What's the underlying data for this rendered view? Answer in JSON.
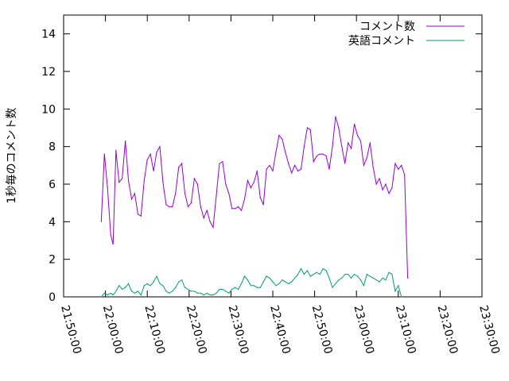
{
  "chart_data": {
    "type": "line",
    "title": "",
    "xlabel": "",
    "ylabel": "1秒毎のコメント数",
    "x_range": [
      "21:50:00",
      "23:30:00"
    ],
    "x_ticks": [
      "21:50:00",
      "22:00:00",
      "22:10:00",
      "22:20:00",
      "22:30:00",
      "22:40:00",
      "22:50:00",
      "23:00:00",
      "23:10:00",
      "23:20:00",
      "23:30:00"
    ],
    "ylim": [
      0,
      15
    ],
    "y_ticks": [
      "0",
      "2",
      "4",
      "6",
      "8",
      "10",
      "12",
      "14"
    ],
    "grid": false,
    "legend_position": "top-right",
    "series": [
      {
        "name": "コメント数",
        "color": "#9400d3",
        "points": [
          [
            "21:59:00",
            4.0
          ],
          [
            "21:59:45",
            7.6
          ],
          [
            "22:00:30",
            5.8
          ],
          [
            "22:01:15",
            3.3
          ],
          [
            "22:01:50",
            2.8
          ],
          [
            "22:02:30",
            7.8
          ],
          [
            "22:03:15",
            6.1
          ],
          [
            "22:04:00",
            6.3
          ],
          [
            "22:04:45",
            8.3
          ],
          [
            "22:05:30",
            6.2
          ],
          [
            "22:06:15",
            5.2
          ],
          [
            "22:07:00",
            5.5
          ],
          [
            "22:07:45",
            4.4
          ],
          [
            "22:08:30",
            4.3
          ],
          [
            "22:09:15",
            6.2
          ],
          [
            "22:10:00",
            7.3
          ],
          [
            "22:10:45",
            7.6
          ],
          [
            "22:11:30",
            6.7
          ],
          [
            "22:12:15",
            7.7
          ],
          [
            "22:13:00",
            8.0
          ],
          [
            "22:13:45",
            6.1
          ],
          [
            "22:14:30",
            4.9
          ],
          [
            "22:15:15",
            4.8
          ],
          [
            "22:16:00",
            4.8
          ],
          [
            "22:16:45",
            5.5
          ],
          [
            "22:17:30",
            6.9
          ],
          [
            "22:18:15",
            7.1
          ],
          [
            "22:19:00",
            5.5
          ],
          [
            "22:19:45",
            4.8
          ],
          [
            "22:20:30",
            5.0
          ],
          [
            "22:21:15",
            6.3
          ],
          [
            "22:22:00",
            6.0
          ],
          [
            "22:22:45",
            4.8
          ],
          [
            "22:23:30",
            4.2
          ],
          [
            "22:24:15",
            4.6
          ],
          [
            "22:25:00",
            4.0
          ],
          [
            "22:25:45",
            3.7
          ],
          [
            "22:26:30",
            5.4
          ],
          [
            "22:27:15",
            7.1
          ],
          [
            "22:28:00",
            7.2
          ],
          [
            "22:28:45",
            6.0
          ],
          [
            "22:29:30",
            5.5
          ],
          [
            "22:30:15",
            4.7
          ],
          [
            "22:31:00",
            4.7
          ],
          [
            "22:31:45",
            4.8
          ],
          [
            "22:32:30",
            4.6
          ],
          [
            "22:33:15",
            5.2
          ],
          [
            "22:34:00",
            6.2
          ],
          [
            "22:34:45",
            5.8
          ],
          [
            "22:35:30",
            6.1
          ],
          [
            "22:36:15",
            6.7
          ],
          [
            "22:37:00",
            5.3
          ],
          [
            "22:37:45",
            4.9
          ],
          [
            "22:38:30",
            6.8
          ],
          [
            "22:39:15",
            7.0
          ],
          [
            "22:40:00",
            6.7
          ],
          [
            "22:40:45",
            7.7
          ],
          [
            "22:41:30",
            8.6
          ],
          [
            "22:42:15",
            8.4
          ],
          [
            "22:43:00",
            7.7
          ],
          [
            "22:43:45",
            7.1
          ],
          [
            "22:44:30",
            6.6
          ],
          [
            "22:45:15",
            7.0
          ],
          [
            "22:46:00",
            6.7
          ],
          [
            "22:46:45",
            6.8
          ],
          [
            "22:47:30",
            8.0
          ],
          [
            "22:48:15",
            9.0
          ],
          [
            "22:49:00",
            8.9
          ],
          [
            "22:49:45",
            7.2
          ],
          [
            "22:50:30",
            7.5
          ],
          [
            "22:51:15",
            7.6
          ],
          [
            "22:52:00",
            7.6
          ],
          [
            "22:52:45",
            7.5
          ],
          [
            "22:53:30",
            6.8
          ],
          [
            "22:54:15",
            8.0
          ],
          [
            "22:55:00",
            9.6
          ],
          [
            "22:55:45",
            9.0
          ],
          [
            "22:56:30",
            8.0
          ],
          [
            "22:57:15",
            7.1
          ],
          [
            "22:58:00",
            8.2
          ],
          [
            "22:58:45",
            7.9
          ],
          [
            "22:59:30",
            9.2
          ],
          [
            "23:00:15",
            8.6
          ],
          [
            "23:01:00",
            8.3
          ],
          [
            "23:01:45",
            7.0
          ],
          [
            "23:02:30",
            7.4
          ],
          [
            "23:03:15",
            8.2
          ],
          [
            "23:04:00",
            6.9
          ],
          [
            "23:04:45",
            6.0
          ],
          [
            "23:05:30",
            6.3
          ],
          [
            "23:06:15",
            5.7
          ],
          [
            "23:07:00",
            6.0
          ],
          [
            "23:07:45",
            5.5
          ],
          [
            "23:08:30",
            5.8
          ],
          [
            "23:09:15",
            7.1
          ],
          [
            "23:10:00",
            6.8
          ],
          [
            "23:10:45",
            7.0
          ],
          [
            "23:11:30",
            6.5
          ],
          [
            "23:12:15",
            1.0
          ]
        ]
      },
      {
        "name": "英語コメント",
        "color": "#009e73",
        "points": [
          [
            "21:59:00",
            0.0
          ],
          [
            "21:59:45",
            0.2
          ],
          [
            "22:00:30",
            0.1
          ],
          [
            "22:01:15",
            0.2
          ],
          [
            "22:01:50",
            0.1
          ],
          [
            "22:02:30",
            0.3
          ],
          [
            "22:03:15",
            0.6
          ],
          [
            "22:04:00",
            0.4
          ],
          [
            "22:04:45",
            0.5
          ],
          [
            "22:05:30",
            0.7
          ],
          [
            "22:06:15",
            0.3
          ],
          [
            "22:07:00",
            0.2
          ],
          [
            "22:07:45",
            0.3
          ],
          [
            "22:08:30",
            0.1
          ],
          [
            "22:09:15",
            0.6
          ],
          [
            "22:10:00",
            0.7
          ],
          [
            "22:10:45",
            0.6
          ],
          [
            "22:11:30",
            0.8
          ],
          [
            "22:12:15",
            1.1
          ],
          [
            "22:13:00",
            0.7
          ],
          [
            "22:13:45",
            0.6
          ],
          [
            "22:14:30",
            0.3
          ],
          [
            "22:15:15",
            0.2
          ],
          [
            "22:16:00",
            0.3
          ],
          [
            "22:16:45",
            0.5
          ],
          [
            "22:17:30",
            0.8
          ],
          [
            "22:18:15",
            0.9
          ],
          [
            "22:19:00",
            0.5
          ],
          [
            "22:19:45",
            0.4
          ],
          [
            "22:20:30",
            0.3
          ],
          [
            "22:21:15",
            0.3
          ],
          [
            "22:22:00",
            0.2
          ],
          [
            "22:22:45",
            0.2
          ],
          [
            "22:23:30",
            0.1
          ],
          [
            "22:24:15",
            0.2
          ],
          [
            "22:25:00",
            0.1
          ],
          [
            "22:25:45",
            0.1
          ],
          [
            "22:26:30",
            0.2
          ],
          [
            "22:27:15",
            0.4
          ],
          [
            "22:28:00",
            0.4
          ],
          [
            "22:28:45",
            0.3
          ],
          [
            "22:29:30",
            0.2
          ],
          [
            "22:30:15",
            0.4
          ],
          [
            "22:31:00",
            0.5
          ],
          [
            "22:31:45",
            0.4
          ],
          [
            "22:32:30",
            0.7
          ],
          [
            "22:33:15",
            1.1
          ],
          [
            "22:34:00",
            0.9
          ],
          [
            "22:34:45",
            0.6
          ],
          [
            "22:35:30",
            0.6
          ],
          [
            "22:36:15",
            0.5
          ],
          [
            "22:37:00",
            0.5
          ],
          [
            "22:37:45",
            0.8
          ],
          [
            "22:38:30",
            1.1
          ],
          [
            "22:39:15",
            1.0
          ],
          [
            "22:40:00",
            0.8
          ],
          [
            "22:40:45",
            0.6
          ],
          [
            "22:41:30",
            0.7
          ],
          [
            "22:42:15",
            0.9
          ],
          [
            "22:43:00",
            0.8
          ],
          [
            "22:43:45",
            0.7
          ],
          [
            "22:44:30",
            0.8
          ],
          [
            "22:45:15",
            1.0
          ],
          [
            "22:46:00",
            1.2
          ],
          [
            "22:46:45",
            1.5
          ],
          [
            "22:47:30",
            1.2
          ],
          [
            "22:48:15",
            1.4
          ],
          [
            "22:49:00",
            1.1
          ],
          [
            "22:49:45",
            1.2
          ],
          [
            "22:50:30",
            1.3
          ],
          [
            "22:51:15",
            1.2
          ],
          [
            "22:52:00",
            1.5
          ],
          [
            "22:52:45",
            1.4
          ],
          [
            "22:53:30",
            1.0
          ],
          [
            "22:54:15",
            0.5
          ],
          [
            "22:55:00",
            0.7
          ],
          [
            "22:55:45",
            0.9
          ],
          [
            "22:56:30",
            1.0
          ],
          [
            "22:57:15",
            1.2
          ],
          [
            "22:58:00",
            1.2
          ],
          [
            "22:58:45",
            1.0
          ],
          [
            "22:59:30",
            1.2
          ],
          [
            "23:00:15",
            1.1
          ],
          [
            "23:01:00",
            0.9
          ],
          [
            "23:01:45",
            0.6
          ],
          [
            "23:02:30",
            1.2
          ],
          [
            "23:03:15",
            1.1
          ],
          [
            "23:04:00",
            1.0
          ],
          [
            "23:04:45",
            0.9
          ],
          [
            "23:05:30",
            0.8
          ],
          [
            "23:06:15",
            1.0
          ],
          [
            "23:07:00",
            0.9
          ],
          [
            "23:07:45",
            1.3
          ],
          [
            "23:08:30",
            1.2
          ],
          [
            "23:09:15",
            0.3
          ],
          [
            "23:10:00",
            0.6
          ],
          [
            "23:10:45",
            0.0
          ]
        ]
      }
    ]
  }
}
